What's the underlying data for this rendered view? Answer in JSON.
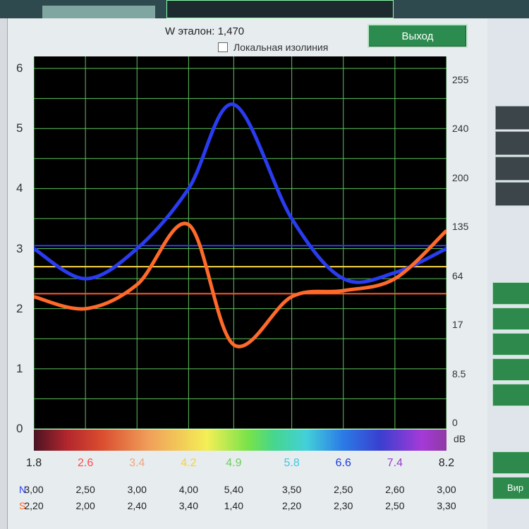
{
  "window": {
    "w_label": "W эталон:",
    "w_value": "1,470",
    "checkbox_label": "Локальная изолиния",
    "exit_label": "Выход"
  },
  "side": {
    "green_label": "Вир"
  },
  "colors": {
    "N": "#2a3cf0",
    "S": "#ff6a2a",
    "blue_ref": "#2a3cf0",
    "yellow_ref": "#ffd84a",
    "orange_ref": "#ff5a2a",
    "grid": "#5ec45e",
    "plot_bg": "#000000"
  },
  "chart_data": {
    "type": "line",
    "x": [
      1.8,
      2.6,
      3.4,
      4.2,
      4.9,
      5.8,
      6.6,
      7.4,
      8.2
    ],
    "x_tick_labels": [
      "1.8",
      "2.6",
      "3.4",
      "4.2",
      "4.9",
      "5.8",
      "6.6",
      "7.4",
      "8.2"
    ],
    "x_tick_colors": [
      "#222222",
      "#ff4a4a",
      "#f2a57a",
      "#f4d23a",
      "#6bd05a",
      "#3fc8e0",
      "#1a3ad8",
      "#9a3ad0",
      "#222222"
    ],
    "ylim": [
      0,
      6.2
    ],
    "left_ticks": [
      "0",
      "1",
      "2",
      "3",
      "4",
      "5",
      "6"
    ],
    "right_ticks": [
      "0",
      "8.5",
      "17",
      "64",
      "135",
      "200",
      "240",
      "255"
    ],
    "right_unit": "dB",
    "ref_lines": {
      "blue": 3.05,
      "yellow": 2.7,
      "orange": 2.25
    },
    "series": [
      {
        "name": "N",
        "values": [
          3.0,
          2.5,
          3.0,
          4.0,
          5.4,
          3.5,
          2.5,
          2.6,
          3.0
        ]
      },
      {
        "name": "S",
        "values": [
          2.2,
          2.0,
          2.4,
          3.4,
          1.4,
          2.2,
          2.3,
          2.5,
          3.3
        ]
      }
    ]
  },
  "table": {
    "rows": [
      {
        "label": "N",
        "values": [
          "3,00",
          "2,50",
          "3,00",
          "4,00",
          "5,40",
          "3,50",
          "2,50",
          "2,60",
          "3,00"
        ]
      },
      {
        "label": "S",
        "values": [
          "2,20",
          "2,00",
          "2,40",
          "3,40",
          "1,40",
          "2,20",
          "2,30",
          "2,50",
          "3,30"
        ]
      }
    ]
  }
}
